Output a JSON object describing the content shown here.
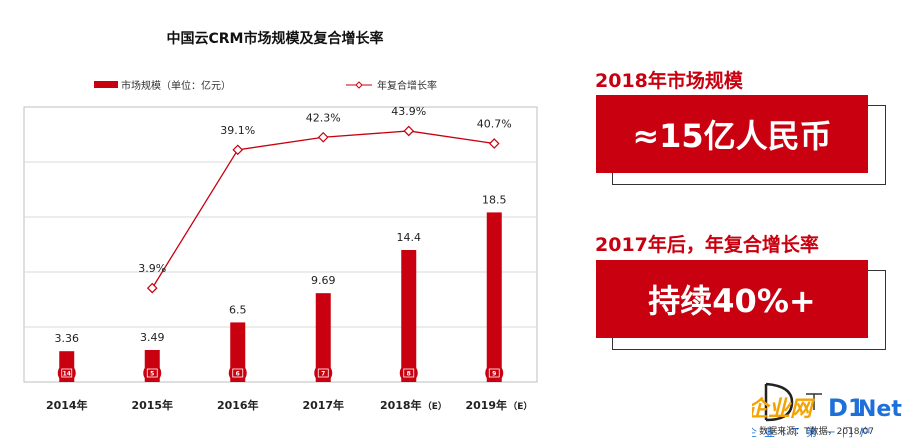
{
  "chart_data": {
    "type": "bar+line",
    "title": "中国云CRM市场规模及复合增长率",
    "categories": [
      "2014年",
      "2015年",
      "2016年",
      "2017年",
      "2018年",
      "2019年"
    ],
    "category_suffix": [
      "",
      "",
      "",
      "",
      "（E）",
      "（E）"
    ],
    "year_tags": [
      "14",
      "5",
      "6",
      "7",
      "8",
      "9"
    ],
    "series": [
      {
        "name": "市场规模（单位：亿元）",
        "type": "bar",
        "color": "#c8000f",
        "values": [
          3.36,
          3.49,
          6.5,
          9.69,
          14.4,
          18.5
        ]
      },
      {
        "name": "年复合增长率",
        "type": "line",
        "color": "#c8000f",
        "values": [
          null,
          3.9,
          39.1,
          42.3,
          43.9,
          40.7
        ],
        "labels": [
          "",
          "3.9%",
          "39.1%",
          "42.3%",
          "43.9%",
          "40.7%"
        ]
      }
    ],
    "bar_ylim": [
      0,
      30
    ],
    "line_ylim": [
      -20,
      50
    ],
    "grid": "horizontal",
    "legend": "top"
  },
  "panel": {
    "heading1": "2018年市场规模",
    "value1": "≈15亿人民币",
    "heading2": "2017年后，年复合增长率",
    "value2": "持续40%+"
  },
  "source": "数据来源：T数据，2018/07",
  "logo_text": "企业网D1Net"
}
